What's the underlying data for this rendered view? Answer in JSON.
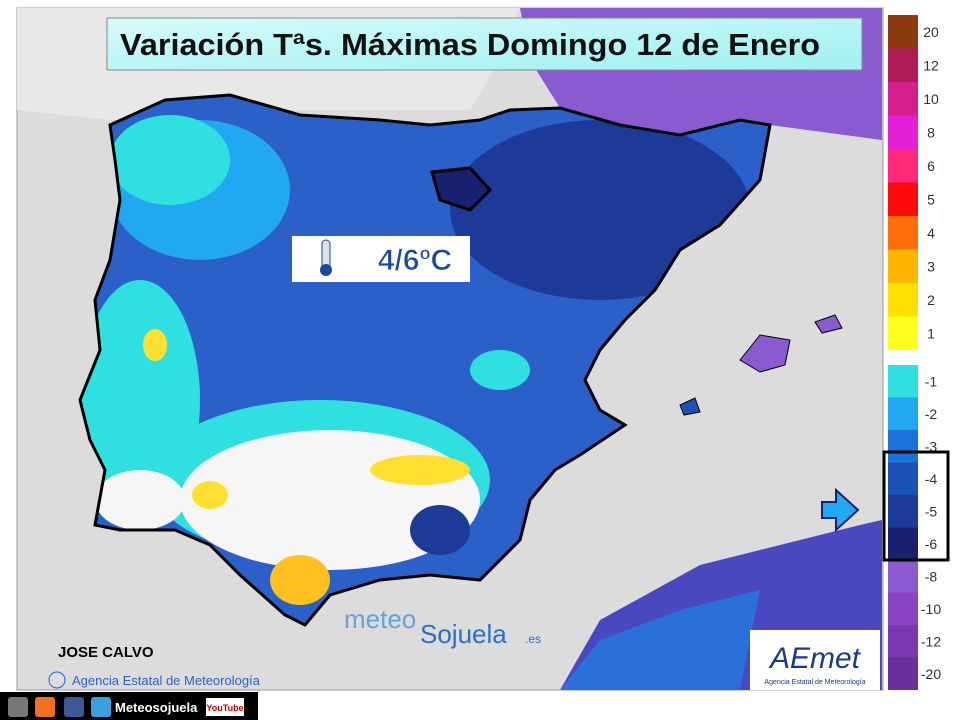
{
  "title": "Variación Tªs. Máximas Domingo 12 de Enero",
  "annotation": "4/6ºC",
  "legend": {
    "items": [
      {
        "label": 20,
        "color": "#8b3a10"
      },
      {
        "label": 12,
        "color": "#b01a55"
      },
      {
        "label": 10,
        "color": "#d41f8c"
      },
      {
        "label": 8,
        "color": "#e41fd6"
      },
      {
        "label": 6,
        "color": "#ff2a78"
      },
      {
        "label": 5,
        "color": "#ff0a0a"
      },
      {
        "label": 4,
        "color": "#ff6e0a"
      },
      {
        "label": 3,
        "color": "#ffb400"
      },
      {
        "label": 2,
        "color": "#ffe000"
      },
      {
        "label": 1,
        "color": "#ffff20"
      },
      {
        "label": -1,
        "color": "#30e0e0"
      },
      {
        "label": -2,
        "color": "#22a8f0"
      },
      {
        "label": -3,
        "color": "#1c72d8"
      },
      {
        "label": -4,
        "color": "#1c52b8"
      },
      {
        "label": -5,
        "color": "#1e3a98"
      },
      {
        "label": -6,
        "color": "#1a2070"
      },
      {
        "label": -8,
        "color": "#8a5ad0"
      },
      {
        "label": -10,
        "color": "#8a44c2"
      },
      {
        "label": -12,
        "color": "#7a38b0"
      },
      {
        "label": -20,
        "color": "#6a2f9a"
      }
    ]
  },
  "author": "JOSE CALVO",
  "credit": "Agencia Estatal de Meteorología",
  "watermark": {
    "part1": "meteo",
    "part2": "Sojuela",
    "part3": ".es"
  },
  "logo": {
    "name": "AEmet",
    "subtitle": "Agencia Estatal de Meteorología"
  },
  "footer": {
    "site": "Meteosojuela",
    "video": "YouTube"
  }
}
